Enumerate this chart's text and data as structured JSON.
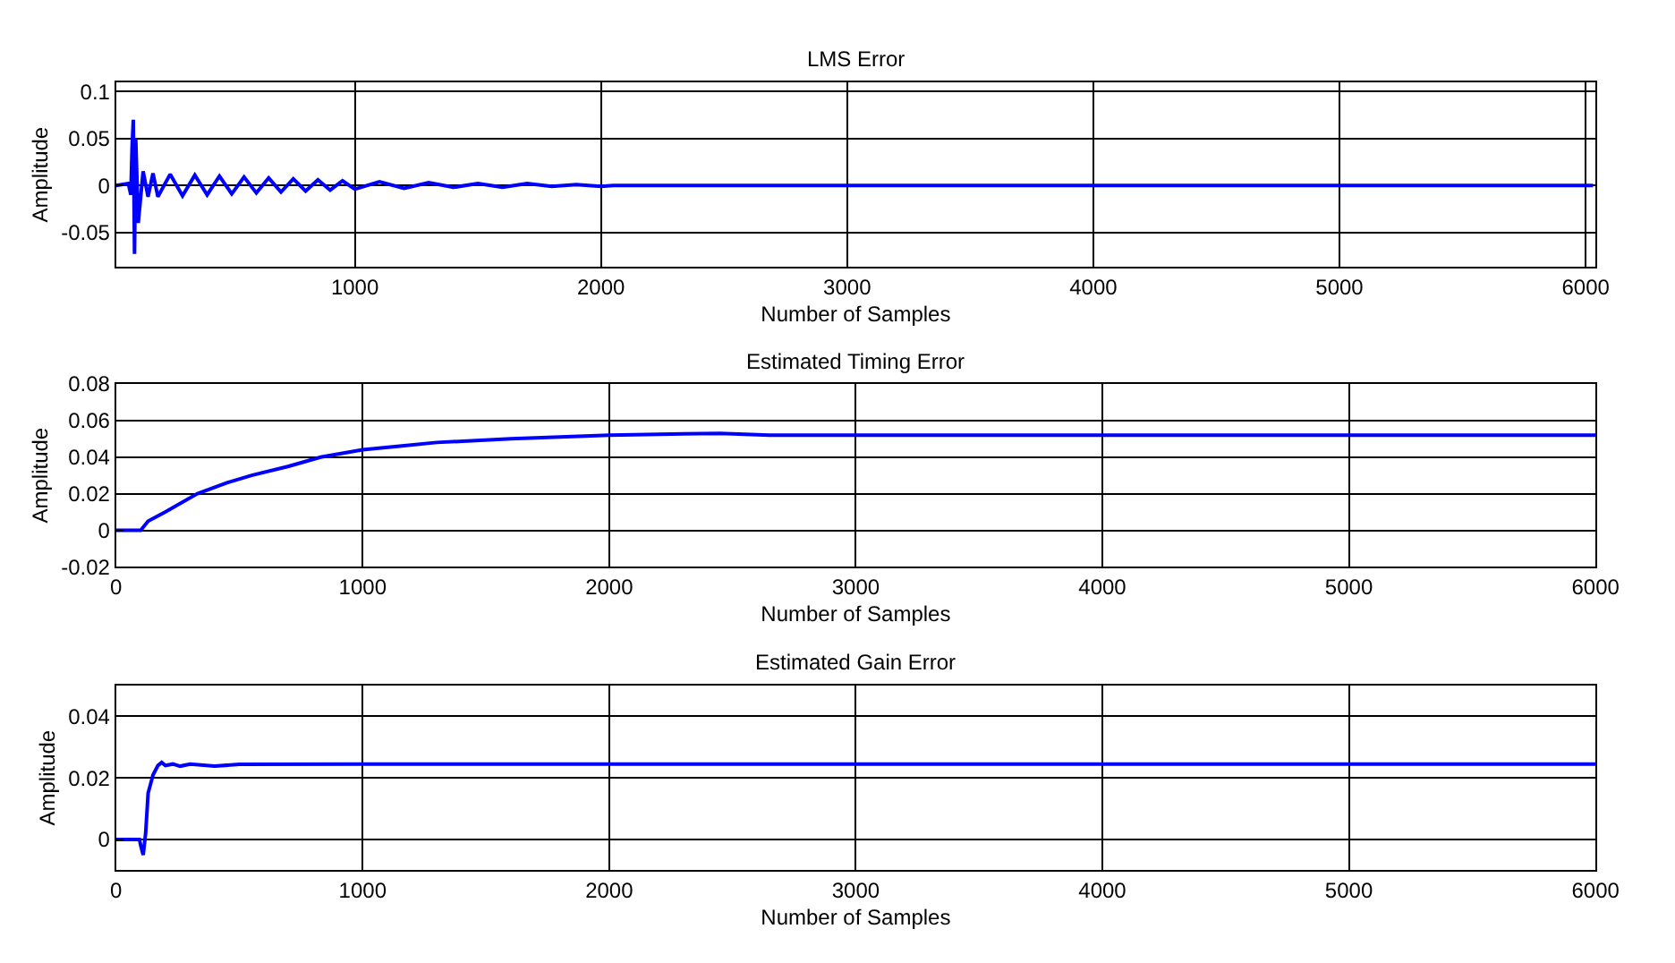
{
  "chart_data": [
    {
      "type": "line",
      "title": "LMS Error",
      "xlabel": "Number of Samples",
      "ylabel": "Amplitude",
      "color": "#0000ff",
      "grid": true,
      "line_style": "solid",
      "xlim": [
        30,
        6040
      ],
      "ylim": [
        -0.087,
        0.11
      ],
      "xticks": [
        1000,
        2000,
        3000,
        4000,
        5000,
        6000
      ],
      "yticks": [
        -0.05,
        0,
        0.05,
        0.1
      ],
      "x": [
        30,
        80,
        90,
        95,
        100,
        105,
        110,
        120,
        140,
        160,
        180,
        200,
        250,
        300,
        350,
        400,
        450,
        500,
        550,
        600,
        650,
        700,
        750,
        800,
        850,
        900,
        950,
        1000,
        1100,
        1200,
        1300,
        1400,
        1500,
        1600,
        1700,
        1800,
        1900,
        2000,
        2050,
        6030
      ],
      "values": [
        0,
        0.002,
        -0.01,
        0.04,
        0.07,
        -0.073,
        0.05,
        -0.04,
        0.015,
        -0.012,
        0.013,
        -0.012,
        0.012,
        -0.011,
        0.011,
        -0.01,
        0.01,
        -0.009,
        0.009,
        -0.008,
        0.008,
        -0.007,
        0.007,
        -0.006,
        0.006,
        -0.005,
        0.005,
        -0.004,
        0.004,
        -0.003,
        0.003,
        -0.002,
        0.002,
        -0.002,
        0.002,
        -0.001,
        0.001,
        -0.001,
        0,
        0
      ]
    },
    {
      "type": "line",
      "title": "Estimated Timing Error",
      "xlabel": "Number of Samples",
      "ylabel": "Amplitude",
      "color": "#0000ff",
      "grid": true,
      "line_style": "solid",
      "xlim": [
        0,
        6000
      ],
      "ylim": [
        -0.02,
        0.08
      ],
      "xticks": [
        0,
        1000,
        2000,
        3000,
        4000,
        5000,
        6000
      ],
      "yticks": [
        -0.02,
        0,
        0.02,
        0.04,
        0.06,
        0.08
      ],
      "x": [
        0,
        100,
        130,
        200,
        330,
        450,
        550,
        700,
        830,
        1000,
        1150,
        1300,
        1600,
        2000,
        2450,
        2650,
        6000
      ],
      "values": [
        0,
        0,
        0.005,
        0.01,
        0.02,
        0.026,
        0.03,
        0.035,
        0.04,
        0.044,
        0.046,
        0.048,
        0.05,
        0.052,
        0.053,
        0.052,
        0.052
      ]
    },
    {
      "type": "line",
      "title": "Estimated Gain Error",
      "xlabel": "Number of Samples",
      "ylabel": "Amplitude",
      "color": "#0000ff",
      "grid": true,
      "line_style": "solid",
      "xlim": [
        0,
        6000
      ],
      "ylim": [
        -0.01,
        0.05
      ],
      "xticks": [
        0,
        1000,
        2000,
        3000,
        4000,
        5000,
        6000
      ],
      "yticks": [
        0,
        0.02,
        0.04
      ],
      "x": [
        0,
        95,
        100,
        110,
        120,
        130,
        150,
        170,
        185,
        200,
        230,
        260,
        300,
        400,
        500,
        1000,
        2000,
        3000,
        4000,
        5000,
        6000
      ],
      "values": [
        0,
        0,
        -0.002,
        -0.005,
        0.002,
        0.015,
        0.021,
        0.024,
        0.025,
        0.024,
        0.0245,
        0.0238,
        0.0245,
        0.0238,
        0.0244,
        0.0245,
        0.0245,
        0.0245,
        0.0245,
        0.0245,
        0.0245
      ]
    }
  ]
}
